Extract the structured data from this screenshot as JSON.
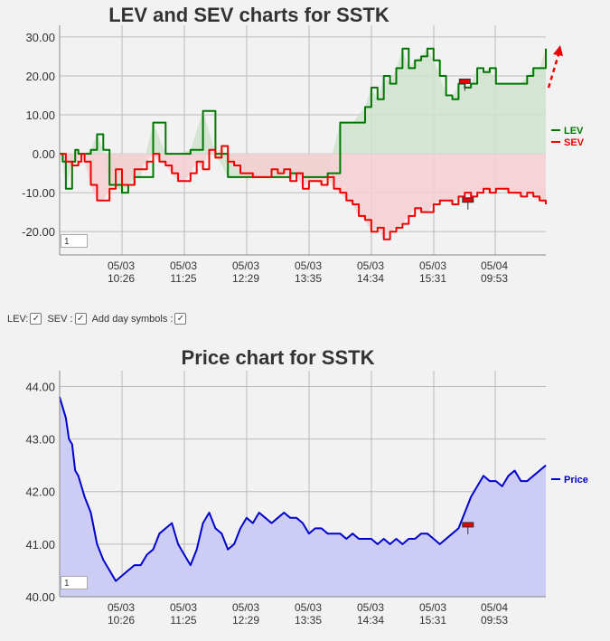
{
  "chart_data": [
    {
      "type": "line",
      "title": "LEV and SEV charts for SSTK",
      "x_tick_labels": [
        {
          "date": "05/03",
          "time": "10:26"
        },
        {
          "date": "05/03",
          "time": "11:25"
        },
        {
          "date": "05/03",
          "time": "12:29"
        },
        {
          "date": "05/03",
          "time": "13:35"
        },
        {
          "date": "05/03",
          "time": "14:34"
        },
        {
          "date": "05/03",
          "time": "15:31"
        },
        {
          "date": "05/04",
          "time": "09:53"
        }
      ],
      "y_ticks": [
        "30.00",
        "20.00",
        "10.00",
        "0.00",
        "-10.00",
        "-20.00"
      ],
      "ylim": [
        -26,
        33
      ],
      "grid": true,
      "legend": "right",
      "zoom_input": "1",
      "series": [
        {
          "name": "LEV",
          "color": "#007700",
          "fill": "#cfe3cf",
          "t": [
            0,
            1,
            2,
            4,
            5,
            6,
            8,
            10,
            12,
            14,
            16,
            18,
            20,
            22,
            24,
            26,
            30,
            34,
            38,
            42,
            46,
            50,
            54,
            58,
            62,
            66,
            70,
            74,
            78,
            82,
            86,
            90,
            94,
            98,
            100,
            102,
            104,
            106,
            108,
            110,
            112,
            114,
            116,
            118,
            120,
            122,
            124,
            126,
            128,
            130,
            132,
            134,
            136,
            138,
            140,
            142,
            144,
            146,
            148,
            150,
            152,
            154,
            156
          ],
          "v": [
            0,
            -2,
            -9,
            -2,
            1,
            0,
            0,
            1,
            5,
            1,
            -8,
            -8,
            -10,
            -8,
            -6,
            -6,
            8,
            0,
            0,
            1,
            11,
            0,
            -6,
            -6,
            -6,
            -6,
            -6,
            -5,
            -6,
            -6,
            -5,
            8,
            8,
            12,
            17,
            14,
            20,
            18,
            22,
            27,
            22,
            24,
            25,
            27,
            24,
            20,
            15,
            14,
            18,
            17,
            18,
            22,
            21,
            22,
            18,
            18,
            18,
            18,
            18,
            20,
            22,
            22,
            27
          ]
        },
        {
          "name": "SEV",
          "color": "#ee0000",
          "fill": "#f5cfd2",
          "t": [
            0,
            2,
            4,
            6,
            7,
            8,
            10,
            12,
            14,
            16,
            18,
            20,
            22,
            24,
            26,
            28,
            30,
            32,
            34,
            36,
            38,
            40,
            42,
            44,
            46,
            48,
            50,
            52,
            54,
            56,
            58,
            60,
            62,
            64,
            66,
            68,
            70,
            72,
            74,
            76,
            78,
            80,
            82,
            84,
            86,
            88,
            90,
            92,
            94,
            96,
            98,
            100,
            102,
            104,
            106,
            108,
            110,
            112,
            114,
            116,
            118,
            120,
            122,
            124,
            126,
            128,
            130,
            132,
            134,
            136,
            138,
            140,
            142,
            144,
            146,
            148,
            150,
            152,
            154,
            156
          ],
          "v": [
            0,
            -2,
            -3,
            -2,
            0,
            -2,
            -8,
            -12,
            -12,
            -9,
            -4,
            -8,
            -8,
            -4,
            -4,
            -2,
            0,
            -2,
            -3,
            -5,
            -7,
            -7,
            -5,
            -2,
            -4,
            1,
            -1,
            2,
            -2,
            -3,
            -5,
            -5,
            -6,
            -6,
            -6,
            -4,
            -5,
            -4,
            -7,
            -5,
            -9,
            -7,
            -7,
            -8,
            -6,
            -9,
            -10,
            -12,
            -13,
            -16,
            -17,
            -20,
            -19,
            -22,
            -20,
            -19,
            -18,
            -16,
            -14,
            -15,
            -15,
            -13,
            -12,
            -12,
            -13,
            -11,
            -10,
            -11,
            -10,
            -9,
            -10,
            -9,
            -9,
            -10,
            -10,
            -11,
            -10,
            -11,
            -12,
            -13
          ]
        }
      ],
      "markers": [
        {
          "series": "LEV",
          "t": 130,
          "v": 18.5
        },
        {
          "series": "SEV",
          "t": 131,
          "v": -12
        }
      ]
    },
    {
      "type": "area",
      "title": "Price chart for SSTK",
      "x_tick_labels": [
        {
          "date": "05/03",
          "time": "10:26"
        },
        {
          "date": "05/03",
          "time": "11:25"
        },
        {
          "date": "05/03",
          "time": "12:29"
        },
        {
          "date": "05/03",
          "time": "13:35"
        },
        {
          "date": "05/03",
          "time": "14:34"
        },
        {
          "date": "05/03",
          "time": "15:31"
        },
        {
          "date": "05/04",
          "time": "09:53"
        }
      ],
      "y_ticks": [
        "44.00",
        "43.00",
        "42.00",
        "41.00",
        "40.00"
      ],
      "ylim": [
        40.0,
        44.3
      ],
      "grid": true,
      "legend": "right",
      "zoom_input": "1",
      "series": [
        {
          "name": "Price",
          "color": "#0000cc",
          "fill": "#ccccf5",
          "t": [
            0,
            1,
            2,
            3,
            4,
            5,
            6,
            8,
            10,
            12,
            14,
            16,
            18,
            20,
            22,
            24,
            26,
            28,
            30,
            32,
            34,
            36,
            38,
            40,
            42,
            44,
            46,
            48,
            50,
            52,
            54,
            56,
            58,
            60,
            62,
            64,
            66,
            68,
            70,
            72,
            74,
            76,
            78,
            80,
            82,
            84,
            86,
            88,
            90,
            92,
            94,
            96,
            98,
            100,
            102,
            104,
            106,
            108,
            110,
            112,
            114,
            116,
            118,
            120,
            122,
            124,
            126,
            128,
            130,
            132,
            134,
            136,
            138,
            140,
            142,
            144,
            146,
            148,
            150,
            152,
            154,
            156
          ],
          "v": [
            43.8,
            43.6,
            43.4,
            43.0,
            42.9,
            42.4,
            42.3,
            41.9,
            41.6,
            41.0,
            40.7,
            40.5,
            40.3,
            40.4,
            40.5,
            40.6,
            40.6,
            40.8,
            40.9,
            41.2,
            41.3,
            41.4,
            41.0,
            40.8,
            40.6,
            40.9,
            41.4,
            41.6,
            41.3,
            41.2,
            40.9,
            41.0,
            41.3,
            41.5,
            41.4,
            41.6,
            41.5,
            41.4,
            41.5,
            41.6,
            41.5,
            41.5,
            41.4,
            41.2,
            41.3,
            41.3,
            41.2,
            41.2,
            41.2,
            41.1,
            41.2,
            41.1,
            41.1,
            41.1,
            41.0,
            41.1,
            41.0,
            41.1,
            41.0,
            41.1,
            41.1,
            41.2,
            41.2,
            41.1,
            41.0,
            41.1,
            41.2,
            41.3,
            41.6,
            41.9,
            42.1,
            42.3,
            42.2,
            42.2,
            42.1,
            42.3,
            42.4,
            42.2,
            42.2,
            42.3,
            42.4,
            42.5
          ]
        }
      ],
      "markers": [
        {
          "series": "Price",
          "t": 131,
          "v": 41.36
        }
      ]
    }
  ],
  "controls": {
    "lev_label": "LEV:",
    "sev_label": "SEV :",
    "day_symbols_label": "Add day symbols :"
  }
}
